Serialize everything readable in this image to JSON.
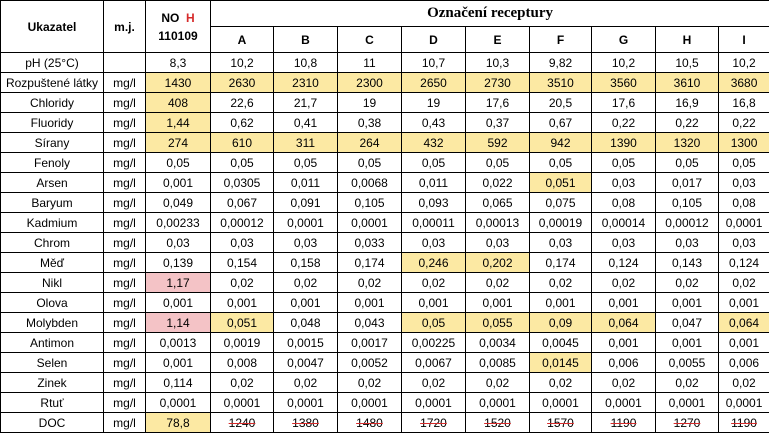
{
  "header": {
    "indicator": "Ukazatel",
    "unit": "m.j.",
    "no_label": "NO",
    "no_suffix": "H",
    "no_code": "110109",
    "group_title": "Označení receptury",
    "recipes": [
      "A",
      "B",
      "C",
      "D",
      "E",
      "F",
      "G",
      "H",
      "I"
    ]
  },
  "colors": {
    "highlight_yellow": "#fce9a3",
    "highlight_red": "#f4c3c6",
    "red_text": "#d62b2b"
  },
  "rows": [
    {
      "name": "pH (25°C)",
      "unit": "",
      "no": "8,3",
      "no_hl": "",
      "vals": [
        "10,2",
        "10,8",
        "11",
        "10,7",
        "10,3",
        "9,82",
        "10,2",
        "10,5",
        "10,2"
      ],
      "hl": [
        0,
        0,
        0,
        0,
        0,
        0,
        0,
        0,
        0
      ],
      "strike": false
    },
    {
      "name": "Rozpuštené látky",
      "unit": "mg/l",
      "no": "1430",
      "no_hl": "y",
      "vals": [
        "2630",
        "2310",
        "2300",
        "2650",
        "2730",
        "3510",
        "3560",
        "3610",
        "3680"
      ],
      "hl": [
        1,
        1,
        1,
        1,
        1,
        1,
        1,
        1,
        1
      ],
      "strike": false
    },
    {
      "name": "Chloridy",
      "unit": "mg/l",
      "no": "408",
      "no_hl": "y",
      "vals": [
        "22,6",
        "21,7",
        "19",
        "19",
        "17,6",
        "20,5",
        "17,6",
        "16,9",
        "16,8"
      ],
      "hl": [
        0,
        0,
        0,
        0,
        0,
        0,
        0,
        0,
        0
      ],
      "strike": false
    },
    {
      "name": "Fluoridy",
      "unit": "mg/l",
      "no": "1,44",
      "no_hl": "y",
      "vals": [
        "0,62",
        "0,41",
        "0,38",
        "0,43",
        "0,37",
        "0,67",
        "0,22",
        "0,22",
        "0,22"
      ],
      "hl": [
        0,
        0,
        0,
        0,
        0,
        0,
        0,
        0,
        0
      ],
      "strike": false
    },
    {
      "name": "Sírany",
      "unit": "mg/l",
      "no": "274",
      "no_hl": "y",
      "vals": [
        "610",
        "311",
        "264",
        "432",
        "592",
        "942",
        "1390",
        "1320",
        "1300"
      ],
      "hl": [
        1,
        1,
        1,
        1,
        1,
        1,
        1,
        1,
        1
      ],
      "strike": false
    },
    {
      "name": "Fenoly",
      "unit": "mg/l",
      "no": "0,05",
      "no_hl": "",
      "vals": [
        "0,05",
        "0,05",
        "0,05",
        "0,05",
        "0,05",
        "0,05",
        "0,05",
        "0,05",
        "0,05"
      ],
      "hl": [
        0,
        0,
        0,
        0,
        0,
        0,
        0,
        0,
        0
      ],
      "strike": false
    },
    {
      "name": "Arsen",
      "unit": "mg/l",
      "no": "0,001",
      "no_hl": "",
      "vals": [
        "0,0305",
        "0,011",
        "0,0068",
        "0,011",
        "0,022",
        "0,051",
        "0,03",
        "0,017",
        "0,03"
      ],
      "hl": [
        0,
        0,
        0,
        0,
        0,
        1,
        0,
        0,
        0
      ],
      "strike": false
    },
    {
      "name": "Baryum",
      "unit": "mg/l",
      "no": "0,049",
      "no_hl": "",
      "vals": [
        "0,067",
        "0,091",
        "0,105",
        "0,093",
        "0,065",
        "0,075",
        "0,08",
        "0,105",
        "0,08"
      ],
      "hl": [
        0,
        0,
        0,
        0,
        0,
        0,
        0,
        0,
        0
      ],
      "strike": false
    },
    {
      "name": "Kadmium",
      "unit": "mg/l",
      "no": "0,00233",
      "no_hl": "",
      "vals": [
        "0,00012",
        "0,0001",
        "0,0001",
        "0,00011",
        "0,00013",
        "0,00019",
        "0,00014",
        "0,00012",
        "0,0001"
      ],
      "hl": [
        0,
        0,
        0,
        0,
        0,
        0,
        0,
        0,
        0
      ],
      "strike": false
    },
    {
      "name": "Chrom",
      "unit": "mg/l",
      "no": "0,03",
      "no_hl": "",
      "vals": [
        "0,03",
        "0,03",
        "0,033",
        "0,03",
        "0,03",
        "0,03",
        "0,03",
        "0,03",
        "0,03"
      ],
      "hl": [
        0,
        0,
        0,
        0,
        0,
        0,
        0,
        0,
        0
      ],
      "strike": false
    },
    {
      "name": "Měď",
      "unit": "mg/l",
      "no": "0,139",
      "no_hl": "",
      "vals": [
        "0,154",
        "0,158",
        "0,174",
        "0,246",
        "0,202",
        "0,174",
        "0,124",
        "0,143",
        "0,124"
      ],
      "hl": [
        0,
        0,
        0,
        1,
        1,
        0,
        0,
        0,
        0
      ],
      "strike": false
    },
    {
      "name": "Nikl",
      "unit": "mg/l",
      "no": "1,17",
      "no_hl": "r",
      "vals": [
        "0,02",
        "0,02",
        "0,02",
        "0,02",
        "0,02",
        "0,02",
        "0,02",
        "0,02",
        "0,02"
      ],
      "hl": [
        0,
        0,
        0,
        0,
        0,
        0,
        0,
        0,
        0
      ],
      "strike": false
    },
    {
      "name": "Olova",
      "unit": "mg/l",
      "no": "0,001",
      "no_hl": "",
      "vals": [
        "0,001",
        "0,001",
        "0,001",
        "0,001",
        "0,001",
        "0,001",
        "0,001",
        "0,001",
        "0,001"
      ],
      "hl": [
        0,
        0,
        0,
        0,
        0,
        0,
        0,
        0,
        0
      ],
      "strike": false
    },
    {
      "name": "Molybden",
      "unit": "mg/l",
      "no": "1,14",
      "no_hl": "r",
      "vals": [
        "0,051",
        "0,048",
        "0,043",
        "0,05",
        "0,055",
        "0,09",
        "0,064",
        "0,047",
        "0,064"
      ],
      "hl": [
        1,
        0,
        0,
        1,
        1,
        1,
        1,
        0,
        1
      ],
      "strike": false
    },
    {
      "name": "Antimon",
      "unit": "mg/l",
      "no": "0,0013",
      "no_hl": "",
      "vals": [
        "0,0019",
        "0,0015",
        "0,0017",
        "0,00225",
        "0,0034",
        "0,0045",
        "0,001",
        "0,001",
        "0,001"
      ],
      "hl": [
        0,
        0,
        0,
        0,
        0,
        0,
        0,
        0,
        0
      ],
      "strike": false
    },
    {
      "name": "Selen",
      "unit": "mg/l",
      "no": "0,001",
      "no_hl": "",
      "vals": [
        "0,008",
        "0,0047",
        "0,0052",
        "0,0067",
        "0,0085",
        "0,0145",
        "0,006",
        "0,0055",
        "0,006"
      ],
      "hl": [
        0,
        0,
        0,
        0,
        0,
        1,
        0,
        0,
        0
      ],
      "strike": false
    },
    {
      "name": "Zinek",
      "unit": "mg/l",
      "no": "0,114",
      "no_hl": "",
      "vals": [
        "0,02",
        "0,02",
        "0,02",
        "0,02",
        "0,02",
        "0,02",
        "0,02",
        "0,02",
        "0,02"
      ],
      "hl": [
        0,
        0,
        0,
        0,
        0,
        0,
        0,
        0,
        0
      ],
      "strike": false
    },
    {
      "name": "Rtuť",
      "unit": "mg/l",
      "no": "0,0001",
      "no_hl": "",
      "vals": [
        "0,0001",
        "0,0001",
        "0,0001",
        "0,0001",
        "0,0001",
        "0,0001",
        "0,0001",
        "0,0001",
        "0,0001"
      ],
      "hl": [
        0,
        0,
        0,
        0,
        0,
        0,
        0,
        0,
        0
      ],
      "strike": false
    },
    {
      "name": "DOC",
      "unit": "mg/l",
      "no": "78,8",
      "no_hl": "y",
      "vals": [
        "1240",
        "1380",
        "1480",
        "1720",
        "1520",
        "1570",
        "1190",
        "1270",
        "1190"
      ],
      "hl": [
        0,
        0,
        0,
        0,
        0,
        0,
        0,
        0,
        0
      ],
      "strike": true
    }
  ]
}
